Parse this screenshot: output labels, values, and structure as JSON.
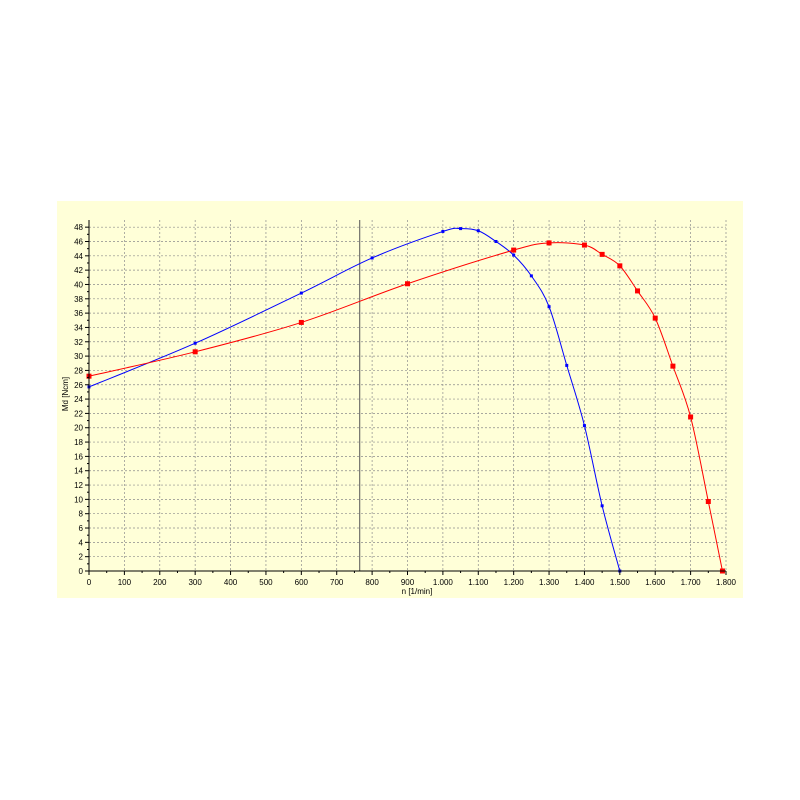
{
  "chart_data": {
    "type": "line",
    "xlabel": "n [1/min]",
    "ylabel": "Md [Ncm]",
    "xlim": [
      0,
      1800
    ],
    "ylim": [
      0,
      49
    ],
    "x_ticks": [
      "0",
      "100",
      "200",
      "300",
      "400",
      "500",
      "600",
      "700",
      "800",
      "900",
      "1.000",
      "1.100",
      "1.200",
      "1.300",
      "1.400",
      "1.500",
      "1.600",
      "1.700",
      "1.800"
    ],
    "y_ticks": [
      "0",
      "2",
      "4",
      "6",
      "8",
      "10",
      "12",
      "14",
      "16",
      "18",
      "20",
      "22",
      "24",
      "26",
      "28",
      "30",
      "32",
      "34",
      "36",
      "38",
      "40",
      "42",
      "44",
      "46",
      "48"
    ],
    "grid": true,
    "cursor_x": 765,
    "colors": {
      "background": "#ffffd8",
      "grid": "#8c8c8c",
      "cursor": "#555555"
    },
    "series": [
      {
        "color": "#0000ff",
        "marker": "small-square",
        "points": [
          [
            0,
            25.7
          ],
          [
            300,
            31.8
          ],
          [
            600,
            38.8
          ],
          [
            800,
            43.7
          ],
          [
            1000,
            47.4
          ],
          [
            1050,
            47.8
          ],
          [
            1100,
            47.5
          ],
          [
            1150,
            46.0
          ],
          [
            1200,
            44.1
          ],
          [
            1250,
            41.2
          ],
          [
            1300,
            36.9
          ],
          [
            1350,
            28.7
          ],
          [
            1400,
            20.3
          ],
          [
            1450,
            9.1
          ],
          [
            1500,
            0
          ]
        ]
      },
      {
        "color": "#ff0000",
        "marker": "square",
        "points": [
          [
            0,
            27.2
          ],
          [
            300,
            30.6
          ],
          [
            600,
            34.7
          ],
          [
            900,
            40.1
          ],
          [
            1200,
            44.8
          ],
          [
            1300,
            45.8
          ],
          [
            1400,
            45.5
          ],
          [
            1450,
            44.2
          ],
          [
            1500,
            42.6
          ],
          [
            1550,
            39.1
          ],
          [
            1600,
            35.3
          ],
          [
            1650,
            28.6
          ],
          [
            1700,
            21.5
          ],
          [
            1750,
            9.7
          ],
          [
            1790,
            0
          ]
        ]
      }
    ]
  }
}
